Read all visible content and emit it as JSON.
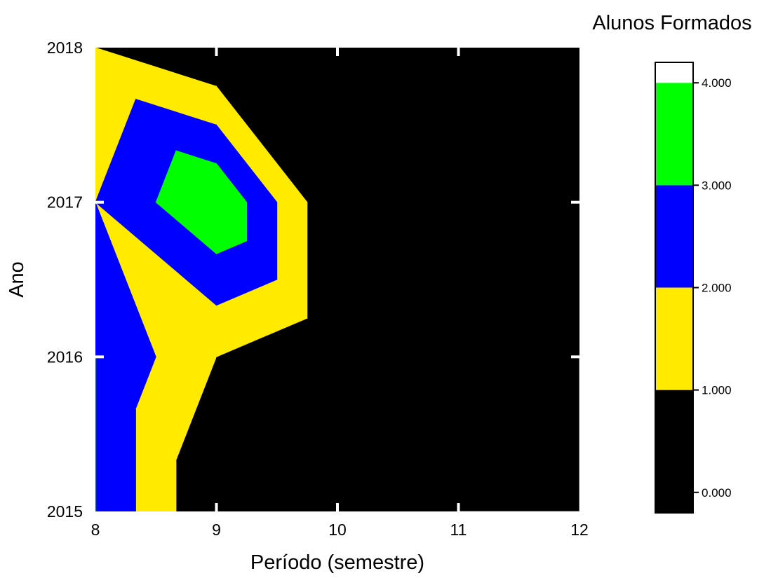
{
  "chart_data": {
    "type": "heatmap",
    "subtype": "filled-contour",
    "xlabel": "Período (semestre)",
    "ylabel": "Ano",
    "x_ticks": [
      "8",
      "9",
      "10",
      "11",
      "12"
    ],
    "y_ticks": [
      "2015",
      "2016",
      "2017",
      "2018"
    ],
    "xlim": [
      8,
      12
    ],
    "ylim": [
      2015,
      2018
    ],
    "x": [
      8,
      9,
      10,
      11,
      12
    ],
    "y": [
      2015,
      2016,
      2017,
      2018
    ],
    "z": [
      [
        3,
        0,
        0,
        1,
        1
      ],
      [
        3,
        1,
        0,
        0,
        1
      ],
      [
        2,
        4,
        0,
        0,
        0
      ],
      [
        1,
        0,
        0,
        0,
        0
      ]
    ],
    "colorbar": {
      "title": "Alunos Formados",
      "ticks": [
        "0.000",
        "1.000",
        "2.000",
        "3.000",
        "4.000"
      ],
      "range": [
        -0.2,
        4.2
      ],
      "levels": [
        {
          "from": -0.2,
          "to": 1,
          "color": "#000000"
        },
        {
          "from": 1,
          "to": 2,
          "color": "#ffea00"
        },
        {
          "from": 2,
          "to": 3,
          "color": "#0000ff"
        },
        {
          "from": 3,
          "to": 4,
          "color": "#00ff00"
        },
        {
          "from": 4,
          "to": 4.2,
          "color": "#ffffff"
        }
      ]
    },
    "grid": false,
    "legend": "colorbar-right"
  }
}
